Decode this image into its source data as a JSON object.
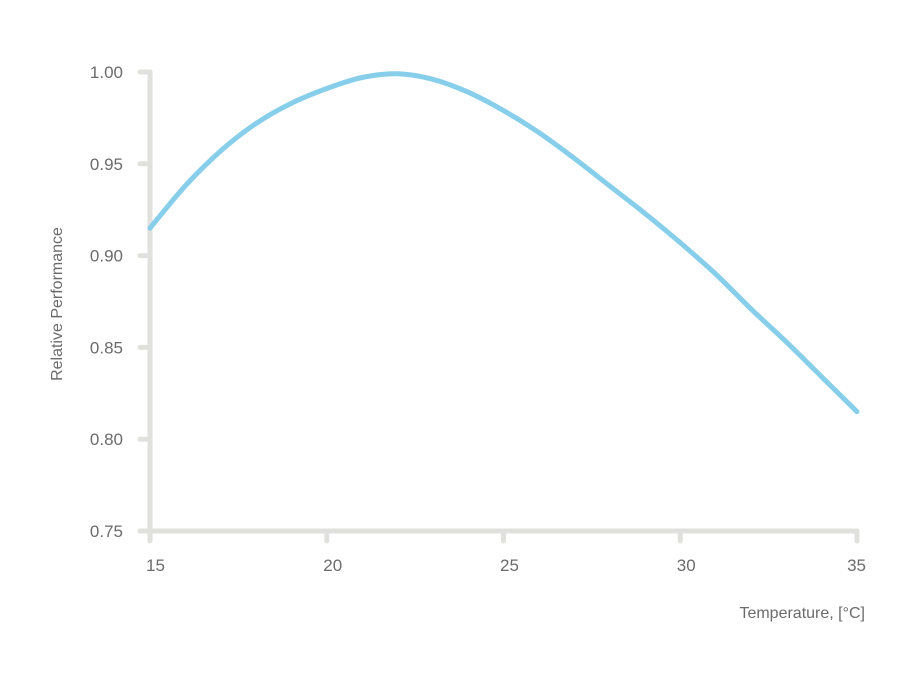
{
  "chart_data": {
    "type": "line",
    "title": "",
    "xlabel": "Temperature, [°C]",
    "ylabel": "Relative Performance",
    "xlim": [
      15,
      35
    ],
    "ylim": [
      0.75,
      1.0
    ],
    "x_ticks": [
      "15",
      "20",
      "25",
      "30",
      "35"
    ],
    "y_ticks": [
      "1.00",
      "0.95",
      "0.90",
      "0.85",
      "0.80",
      "0.75"
    ],
    "grid": false,
    "legend": null,
    "series": [
      {
        "name": "Relative Performance",
        "color": "#87CEEB",
        "x": [
          15,
          16,
          17,
          18,
          19,
          20,
          21,
          22,
          23,
          24,
          25,
          26,
          27,
          28,
          29,
          30,
          31,
          32,
          33,
          34,
          35
        ],
        "values": [
          0.915,
          0.938,
          0.957,
          0.972,
          0.983,
          0.991,
          0.997,
          0.999,
          0.996,
          0.989,
          0.979,
          0.967,
          0.953,
          0.938,
          0.923,
          0.907,
          0.89,
          0.871,
          0.853,
          0.834,
          0.815
        ]
      }
    ]
  },
  "style": {
    "axis_color": "#e0e0dd",
    "line_color": "#87CEEB",
    "text_color": "#6b6b6b"
  }
}
